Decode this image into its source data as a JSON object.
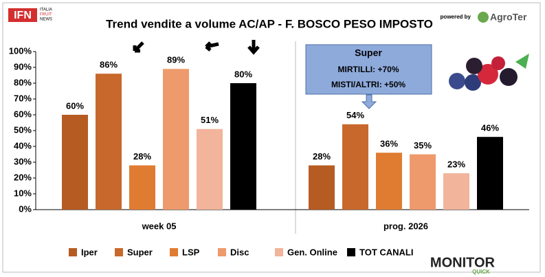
{
  "header": {
    "logo": "IFN",
    "logo_sub": [
      "ITALIA",
      "FRUIT",
      "NEWS"
    ],
    "powered_by": "powered by",
    "partner": "AgroTer",
    "footer_logo": "MONITOR",
    "footer_logo_sub": "QUICK"
  },
  "chart_data": {
    "type": "bar",
    "title": "Trend vendite a volume AC/AP - F. BOSCO PESO IMPOSTO",
    "categories": [
      "week 05",
      "prog. 2026"
    ],
    "series": [
      {
        "name": "Iper",
        "color": "#b65c23",
        "values": [
          60,
          28
        ],
        "value_labels": [
          "60%",
          "28%"
        ]
      },
      {
        "name": "Super",
        "color": "#c8682c",
        "values": [
          86,
          54
        ],
        "value_labels": [
          "86%",
          "54%"
        ]
      },
      {
        "name": "LSP",
        "color": "#e07b32",
        "values": [
          28,
          36
        ],
        "value_labels": [
          "28%",
          "36%"
        ]
      },
      {
        "name": "Disc",
        "color": "#ee9a6c",
        "values": [
          89,
          35
        ],
        "value_labels": [
          "89%",
          "35%"
        ]
      },
      {
        "name": "Gen. Online",
        "color": "#f2b49b",
        "values": [
          51,
          23
        ],
        "value_labels": [
          "51%",
          "23%"
        ]
      },
      {
        "name": "TOT CANALI",
        "color": "#000000",
        "values": [
          80,
          46
        ],
        "value_labels": [
          "80%",
          "46%"
        ]
      }
    ],
    "ylim": [
      0,
      100
    ],
    "yticks": [
      {
        "value": 0,
        "label": "0%"
      },
      {
        "value": 10,
        "label": "10%"
      },
      {
        "value": 20,
        "label": "20%"
      },
      {
        "value": 30,
        "label": "30%"
      },
      {
        "value": 40,
        "label": "40%"
      },
      {
        "value": 50,
        "label": "50%"
      },
      {
        "value": 60,
        "label": "60%"
      },
      {
        "value": 70,
        "label": "70%"
      },
      {
        "value": 80,
        "label": "80%"
      },
      {
        "value": 90,
        "label": "90%"
      },
      {
        "value": 100,
        "label": "100%"
      }
    ],
    "grid": false,
    "annotation": {
      "title": "Super",
      "lines": [
        "MIRTILLI: +70%",
        "MISTI/ALTRI: +50%"
      ]
    }
  }
}
